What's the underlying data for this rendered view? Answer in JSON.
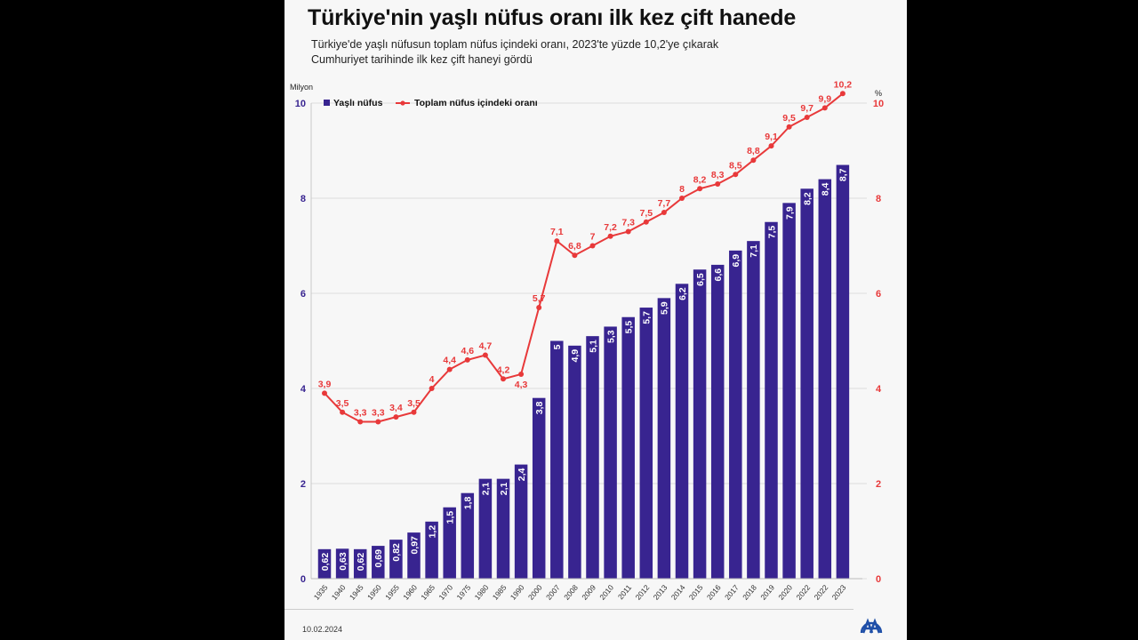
{
  "header": {
    "title": "Türkiye'nin yaşlı nüfus oranı ilk kez çift hanede",
    "subtitle_line1": "Türkiye'de yaşlı nüfusun toplam nüfus içindeki oranı, 2023'te yüzde 10,2'ye çıkarak",
    "subtitle_line2": "Cumhuriyet tarihinde ilk kez çift haneyi gördü"
  },
  "footer": {
    "date": "10.02.2024",
    "logo": "aa-logo-icon"
  },
  "colors": {
    "bar": "#382490",
    "line": "#e8393a",
    "left_axis": "#382490",
    "right_axis": "#e8393a",
    "background": "#f7f7f7"
  },
  "chart_data": {
    "type": "bar+line",
    "title": "Türkiye'nin yaşlı nüfus oranı ilk kez çift hanede",
    "subtitle": "Türkiye'de yaşlı nüfusun toplam nüfus içindeki oranı, 2023'te yüzde 10,2'ye çıkarak Cumhuriyet tarihinde ilk kez çift haneyi gördü",
    "ylabel_left": "Milyon",
    "ylabel_right": "%",
    "ylim_left": [
      0,
      10
    ],
    "ylim_right": [
      0,
      10
    ],
    "yticks_left": [
      "0",
      "2",
      "4",
      "6",
      "8",
      "10"
    ],
    "yticks_right": [
      "0",
      "2",
      "4",
      "6",
      "8",
      "10"
    ],
    "grid": true,
    "legend_position": "top-left",
    "categories": [
      "1935",
      "1940",
      "1945",
      "1950",
      "1955",
      "1960",
      "1965",
      "1970",
      "1975",
      "1980",
      "1985",
      "1990",
      "2000",
      "2007",
      "2008",
      "2009",
      "2010",
      "2011",
      "2012",
      "2013",
      "2014",
      "2015",
      "2016",
      "2017",
      "2018",
      "2019",
      "2020",
      "2022",
      "2022",
      "2023"
    ],
    "series": [
      {
        "name": "Yaşlı nüfus",
        "type": "bar",
        "axis": "left",
        "values": [
          0.62,
          0.63,
          0.62,
          0.69,
          0.82,
          0.97,
          1.2,
          1.5,
          1.8,
          2.1,
          2.1,
          2.4,
          3.8,
          5,
          4.9,
          5.1,
          5.3,
          5.5,
          5.7,
          5.9,
          6.2,
          6.5,
          6.6,
          6.9,
          7.1,
          7.5,
          7.9,
          8.2,
          8.4,
          8.7
        ],
        "labels": [
          "0,62",
          "0,63",
          "0,62",
          "0,69",
          "0,82",
          "0,97",
          "1,2",
          "1,5",
          "1,8",
          "2,1",
          "2,1",
          "2,4",
          "3,8",
          "5",
          "4,9",
          "5,1",
          "5,3",
          "5,5",
          "5,7",
          "5,9",
          "6,2",
          "6,5",
          "6,6",
          "6,9",
          "7,1",
          "7,5",
          "7,9",
          "8,2",
          "8,4",
          "8,7"
        ]
      },
      {
        "name": "Toplam nüfus içindeki oranı",
        "type": "line",
        "axis": "right",
        "values": [
          3.9,
          3.5,
          3.3,
          3.3,
          3.4,
          3.5,
          4,
          4.4,
          4.6,
          4.7,
          4.2,
          4.3,
          5.7,
          7.1,
          6.8,
          7,
          7.2,
          7.3,
          7.5,
          7.7,
          8,
          8.2,
          8.3,
          8.5,
          8.8,
          9.1,
          9.5,
          9.7,
          9.9,
          10.2
        ],
        "labels": [
          "3,9",
          "3,5",
          "3,3",
          "3,3",
          "3,4",
          "3,5",
          "4",
          "4,4",
          "4,6",
          "4,7",
          "4,2",
          "4,3",
          "5,7",
          "7,1",
          "6,8",
          "7",
          "7,2",
          "7,3",
          "7,5",
          "7,7",
          "8",
          "8,2",
          "8,3",
          "8,5",
          "8,8",
          "9,1",
          "9,5",
          "9,7",
          "9,9",
          "10,2"
        ]
      }
    ]
  }
}
